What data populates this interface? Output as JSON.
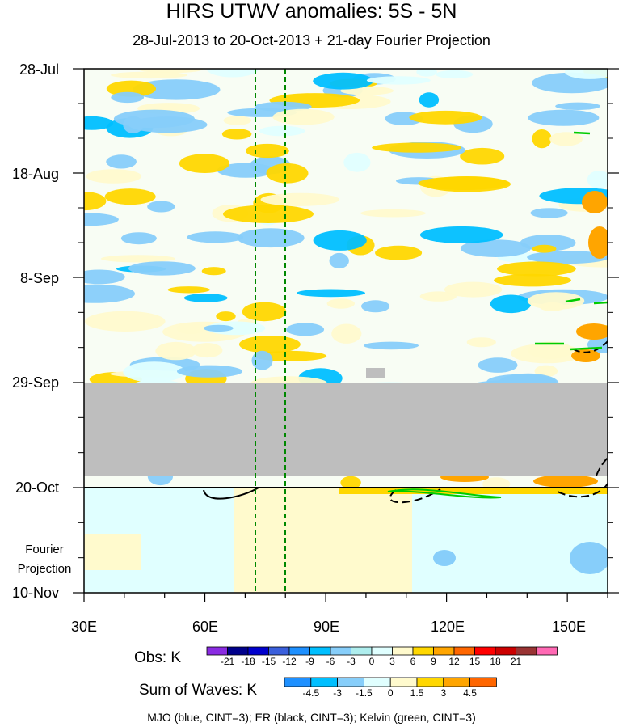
{
  "chart_data": {
    "type": "heatmap",
    "title": "HIRS UTWV anomalies: 5S - 5N",
    "subtitle": "28-Jul-2013 to 20-Oct-2013 + 21-day Fourier Projection",
    "x_axis": {
      "range": [
        "30E",
        "160E"
      ],
      "ticks": [
        "30E",
        "60E",
        "90E",
        "120E",
        "150E"
      ]
    },
    "y_axis": {
      "range": [
        "28-Jul",
        "10-Nov"
      ],
      "ticks": [
        "28-Jul",
        "18-Aug",
        "8-Sep",
        "29-Sep",
        "20-Oct",
        "10-Nov"
      ]
    },
    "projection_label": [
      "Fourier",
      "Projection"
    ],
    "obs_colorbar": {
      "title": "Obs: K",
      "levels": [
        "-21",
        "-18",
        "-15",
        "-12",
        "-9",
        "-6",
        "-3",
        "0",
        "3",
        "6",
        "9",
        "12",
        "15",
        "18",
        "21"
      ],
      "colors": [
        "#8a2be2",
        "#00008b",
        "#0000cd",
        "#3a5fdc",
        "#1e90ff",
        "#00bfff",
        "#87cefa",
        "#afeeee",
        "#e0ffff",
        "#fffacd",
        "#ffd700",
        "#ffa500",
        "#ff6600",
        "#ff0000",
        "#cc0000",
        "#993333",
        "#ff69b4"
      ]
    },
    "waves_colorbar": {
      "title": "Sum of Waves: K",
      "levels": [
        "-4.5",
        "-3",
        "-1.5",
        "0",
        "1.5",
        "3",
        "4.5"
      ],
      "colors": [
        "#1e90ff",
        "#00bfff",
        "#87cefa",
        "#e0ffff",
        "#fffacd",
        "#ffd700",
        "#ffa500",
        "#ff6600"
      ]
    },
    "reference_lines": {
      "longitudes_dashed_green": [
        "~72E",
        "~80E"
      ],
      "date_solid_black": "20-Oct"
    },
    "missing_data_period": [
      "29-Sep",
      "17-Oct"
    ],
    "footnote": "MJO (blue, CINT=3); ER (black, CINT=3); Kelvin (green, CINT=3)"
  }
}
